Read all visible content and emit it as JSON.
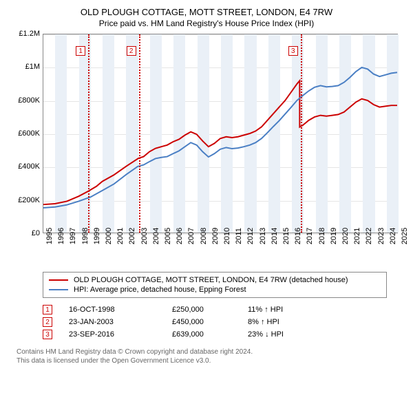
{
  "title": "OLD PLOUGH COTTAGE, MOTT STREET, LONDON, E4 7RW",
  "subtitle": "Price paid vs. HM Land Registry's House Price Index (HPI)",
  "chart": {
    "type": "line",
    "background_color": "#ffffff",
    "band_color": "#eaf0f7",
    "grid_color": "#e5e5e5",
    "border_color": "#888888",
    "x": {
      "min": 1995,
      "max": 2025,
      "ticks": [
        1995,
        1996,
        1997,
        1998,
        1999,
        2000,
        2001,
        2002,
        2003,
        2004,
        2005,
        2006,
        2007,
        2008,
        2009,
        2010,
        2011,
        2012,
        2013,
        2014,
        2015,
        2016,
        2017,
        2018,
        2019,
        2020,
        2021,
        2022,
        2023,
        2024,
        2025
      ]
    },
    "y": {
      "min": 0,
      "max": 1200000,
      "ticks": [
        {
          "v": 0,
          "label": "£0"
        },
        {
          "v": 200000,
          "label": "£200K"
        },
        {
          "v": 400000,
          "label": "£400K"
        },
        {
          "v": 600000,
          "label": "£600K"
        },
        {
          "v": 800000,
          "label": "£800K"
        },
        {
          "v": 1000000,
          "label": "£1M"
        },
        {
          "v": 1200000,
          "label": "£1.2M"
        }
      ]
    },
    "sale_lines": [
      {
        "n": "1",
        "x": 1998.79,
        "color": "#cc0000",
        "label_y": 1100000
      },
      {
        "n": "2",
        "x": 2003.06,
        "color": "#cc0000",
        "label_y": 1100000
      },
      {
        "n": "3",
        "x": 2016.73,
        "color": "#cc0000",
        "label_y": 1100000
      }
    ],
    "series": [
      {
        "name": "red",
        "color": "#cc0000",
        "width": 2,
        "data": [
          [
            1995.0,
            170000
          ],
          [
            1996.0,
            175000
          ],
          [
            1997.0,
            190000
          ],
          [
            1998.0,
            220000
          ],
          [
            1998.79,
            250000
          ],
          [
            1999.5,
            280000
          ],
          [
            2000.0,
            310000
          ],
          [
            2001.0,
            350000
          ],
          [
            2002.0,
            400000
          ],
          [
            2003.06,
            450000
          ],
          [
            2003.5,
            460000
          ],
          [
            2004.0,
            490000
          ],
          [
            2004.5,
            510000
          ],
          [
            2005.0,
            520000
          ],
          [
            2005.5,
            530000
          ],
          [
            2006.0,
            550000
          ],
          [
            2006.5,
            565000
          ],
          [
            2007.0,
            590000
          ],
          [
            2007.5,
            610000
          ],
          [
            2008.0,
            595000
          ],
          [
            2008.5,
            555000
          ],
          [
            2009.0,
            520000
          ],
          [
            2009.5,
            540000
          ],
          [
            2010.0,
            570000
          ],
          [
            2010.5,
            580000
          ],
          [
            2011.0,
            575000
          ],
          [
            2011.5,
            580000
          ],
          [
            2012.0,
            590000
          ],
          [
            2012.5,
            600000
          ],
          [
            2013.0,
            615000
          ],
          [
            2013.5,
            640000
          ],
          [
            2014.0,
            680000
          ],
          [
            2014.5,
            720000
          ],
          [
            2015.0,
            760000
          ],
          [
            2015.5,
            800000
          ],
          [
            2016.0,
            850000
          ],
          [
            2016.5,
            900000
          ],
          [
            2016.73,
            920000
          ],
          [
            2016.73,
            639000
          ],
          [
            2017.0,
            650000
          ],
          [
            2017.5,
            680000
          ],
          [
            2018.0,
            700000
          ],
          [
            2018.5,
            710000
          ],
          [
            2019.0,
            705000
          ],
          [
            2019.5,
            710000
          ],
          [
            2020.0,
            715000
          ],
          [
            2020.5,
            730000
          ],
          [
            2021.0,
            760000
          ],
          [
            2021.5,
            790000
          ],
          [
            2022.0,
            810000
          ],
          [
            2022.5,
            800000
          ],
          [
            2023.0,
            775000
          ],
          [
            2023.5,
            760000
          ],
          [
            2024.0,
            765000
          ],
          [
            2024.5,
            770000
          ],
          [
            2025.0,
            770000
          ]
        ]
      },
      {
        "name": "blue",
        "color": "#4a7fc4",
        "width": 2,
        "data": [
          [
            1995.0,
            150000
          ],
          [
            1996.0,
            155000
          ],
          [
            1997.0,
            168000
          ],
          [
            1998.0,
            190000
          ],
          [
            1999.0,
            215000
          ],
          [
            2000.0,
            255000
          ],
          [
            2001.0,
            295000
          ],
          [
            2002.0,
            350000
          ],
          [
            2003.0,
            400000
          ],
          [
            2003.5,
            410000
          ],
          [
            2004.0,
            430000
          ],
          [
            2004.5,
            448000
          ],
          [
            2005.0,
            455000
          ],
          [
            2005.5,
            460000
          ],
          [
            2006.0,
            478000
          ],
          [
            2006.5,
            495000
          ],
          [
            2007.0,
            520000
          ],
          [
            2007.5,
            545000
          ],
          [
            2008.0,
            530000
          ],
          [
            2008.5,
            490000
          ],
          [
            2009.0,
            458000
          ],
          [
            2009.5,
            478000
          ],
          [
            2010.0,
            505000
          ],
          [
            2010.5,
            515000
          ],
          [
            2011.0,
            508000
          ],
          [
            2011.5,
            512000
          ],
          [
            2012.0,
            520000
          ],
          [
            2012.5,
            530000
          ],
          [
            2013.0,
            545000
          ],
          [
            2013.5,
            570000
          ],
          [
            2014.0,
            605000
          ],
          [
            2014.5,
            642000
          ],
          [
            2015.0,
            678000
          ],
          [
            2015.5,
            718000
          ],
          [
            2016.0,
            758000
          ],
          [
            2016.5,
            800000
          ],
          [
            2017.0,
            830000
          ],
          [
            2017.5,
            858000
          ],
          [
            2018.0,
            880000
          ],
          [
            2018.5,
            890000
          ],
          [
            2019.0,
            882000
          ],
          [
            2019.5,
            885000
          ],
          [
            2020.0,
            890000
          ],
          [
            2020.5,
            910000
          ],
          [
            2021.0,
            940000
          ],
          [
            2021.5,
            975000
          ],
          [
            2022.0,
            1000000
          ],
          [
            2022.5,
            990000
          ],
          [
            2023.0,
            960000
          ],
          [
            2023.5,
            945000
          ],
          [
            2024.0,
            955000
          ],
          [
            2024.5,
            965000
          ],
          [
            2025.0,
            970000
          ]
        ]
      }
    ]
  },
  "legend": [
    {
      "color": "#cc0000",
      "label": "OLD PLOUGH COTTAGE, MOTT STREET, LONDON, E4 7RW (detached house)"
    },
    {
      "color": "#4a7fc4",
      "label": "HPI: Average price, detached house, Epping Forest"
    }
  ],
  "sales": [
    {
      "n": "1",
      "date": "16-OCT-1998",
      "price": "£250,000",
      "delta": "11% ↑ HPI"
    },
    {
      "n": "2",
      "date": "23-JAN-2003",
      "price": "£450,000",
      "delta": "8% ↑ HPI"
    },
    {
      "n": "3",
      "date": "23-SEP-2016",
      "price": "£639,000",
      "delta": "23% ↓ HPI"
    }
  ],
  "footer1": "Contains HM Land Registry data © Crown copyright and database right 2024.",
  "footer2": "This data is licensed under the Open Government Licence v3.0."
}
